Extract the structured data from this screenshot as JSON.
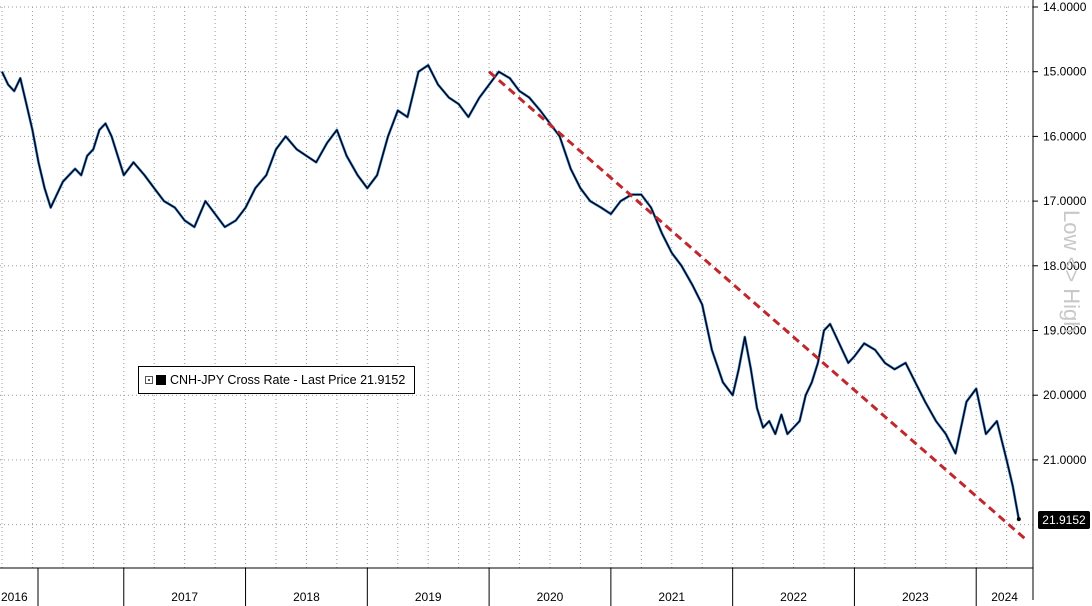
{
  "chart_data": {
    "type": "line",
    "title": "",
    "xlabel": "",
    "ylabel": "",
    "y_axis_side": "right",
    "y_axis_inverted": true,
    "y_axis_side_label": "Low <> High",
    "ylim": [
      14.0,
      22.0
    ],
    "y_ticks": [
      "14.0000",
      "15.0000",
      "16.0000",
      "17.0000",
      "18.0000",
      "19.0000",
      "20.0000",
      "21.0000"
    ],
    "x_tick_labels": [
      "2016",
      "2017",
      "2018",
      "2019",
      "2020",
      "2021",
      "2022",
      "2023",
      "2024"
    ],
    "grid": true,
    "legend": {
      "placement": "center-left",
      "label": "CNH-JPY Cross Rate - Last Price 21.9152"
    },
    "last_value_tag": "21.9152",
    "series": [
      {
        "name": "CNH-JPY Cross Rate",
        "color": "#000000",
        "highlight_color": "#1f6fd0",
        "x": [
          2016.0,
          2016.05,
          2016.1,
          2016.15,
          2016.2,
          2016.25,
          2016.3,
          2016.35,
          2016.4,
          2016.45,
          2016.5,
          2016.55,
          2016.6,
          2016.65,
          2016.7,
          2016.75,
          2016.8,
          2016.85,
          2016.9,
          2016.95,
          2017.0,
          2017.08,
          2017.17,
          2017.25,
          2017.33,
          2017.42,
          2017.5,
          2017.58,
          2017.67,
          2017.75,
          2017.83,
          2017.92,
          2018.0,
          2018.08,
          2018.17,
          2018.25,
          2018.33,
          2018.42,
          2018.5,
          2018.58,
          2018.67,
          2018.75,
          2018.83,
          2018.92,
          2019.0,
          2019.08,
          2019.17,
          2019.25,
          2019.33,
          2019.42,
          2019.5,
          2019.58,
          2019.67,
          2019.75,
          2019.83,
          2019.92,
          2020.0,
          2020.08,
          2020.17,
          2020.25,
          2020.33,
          2020.42,
          2020.5,
          2020.58,
          2020.67,
          2020.75,
          2020.83,
          2020.92,
          2021.0,
          2021.08,
          2021.17,
          2021.25,
          2021.33,
          2021.42,
          2021.5,
          2021.58,
          2021.67,
          2021.75,
          2021.83,
          2021.92,
          2022.0,
          2022.05,
          2022.1,
          2022.15,
          2022.2,
          2022.25,
          2022.3,
          2022.35,
          2022.4,
          2022.45,
          2022.5,
          2022.55,
          2022.6,
          2022.65,
          2022.7,
          2022.75,
          2022.8,
          2022.85,
          2022.9,
          2022.95,
          2023.0,
          2023.08,
          2023.17,
          2023.25,
          2023.33,
          2023.42,
          2023.5,
          2023.58,
          2023.67,
          2023.75,
          2023.83,
          2023.92,
          2024.0,
          2024.08,
          2024.17,
          2024.25,
          2024.3,
          2024.35
        ],
        "values": [
          15.0,
          15.2,
          15.3,
          15.1,
          15.5,
          15.9,
          16.4,
          16.8,
          17.1,
          16.9,
          16.7,
          16.6,
          16.5,
          16.6,
          16.3,
          16.2,
          15.9,
          15.8,
          16.0,
          16.3,
          16.6,
          16.4,
          16.6,
          16.8,
          17.0,
          17.1,
          17.3,
          17.4,
          17.0,
          17.2,
          17.4,
          17.3,
          17.1,
          16.8,
          16.6,
          16.2,
          16.0,
          16.2,
          16.3,
          16.4,
          16.1,
          15.9,
          16.3,
          16.6,
          16.8,
          16.6,
          16.0,
          15.6,
          15.7,
          15.0,
          14.9,
          15.2,
          15.4,
          15.5,
          15.7,
          15.4,
          15.2,
          15.0,
          15.1,
          15.3,
          15.4,
          15.6,
          15.8,
          16.0,
          16.5,
          16.8,
          17.0,
          17.1,
          17.2,
          17.0,
          16.9,
          16.9,
          17.1,
          17.5,
          17.8,
          18.0,
          18.3,
          18.6,
          19.3,
          19.8,
          20.0,
          19.6,
          19.1,
          19.6,
          20.2,
          20.5,
          20.4,
          20.6,
          20.3,
          20.6,
          20.5,
          20.4,
          20.0,
          19.8,
          19.5,
          19.0,
          18.9,
          19.1,
          19.3,
          19.5,
          19.4,
          19.2,
          19.3,
          19.5,
          19.6,
          19.5,
          19.8,
          20.1,
          20.4,
          20.6,
          20.9,
          20.1,
          19.9,
          20.6,
          20.4,
          21.0,
          21.4,
          21.9152
        ]
      },
      {
        "name": "Trendline",
        "color": "#c0282d",
        "style": "dashed",
        "x": [
          2020.0,
          2024.42
        ],
        "values": [
          15.0,
          22.25
        ]
      }
    ]
  }
}
